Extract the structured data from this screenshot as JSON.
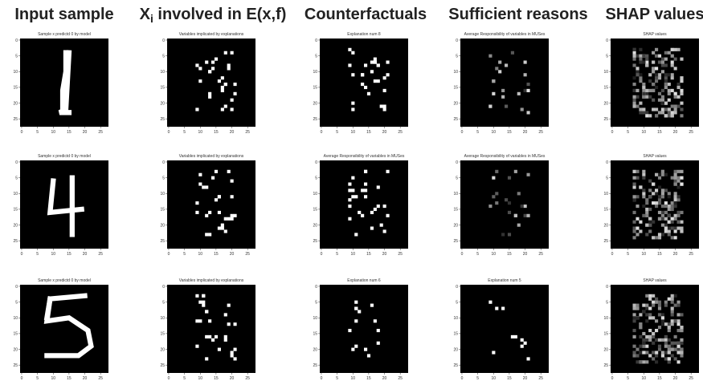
{
  "headers": [
    "Input sample",
    {
      "main": "X",
      "sub": "i",
      "rest": " involved in E(x,f)"
    },
    "Counterfactuals",
    "Sufficient reasons",
    "SHAP values"
  ],
  "rows": [
    {
      "panels": [
        {
          "title": "Sample x predictd 0 by model"
        },
        {
          "title": "Variables implicated by explanations"
        },
        {
          "title": "Explanation num 8"
        },
        {
          "title": "Average Responsibility of variables in MUSes"
        },
        {
          "title": "SHAP values"
        }
      ]
    },
    {
      "panels": [
        {
          "title": "Sample x predictd 0 by model"
        },
        {
          "title": "Variables implicated by explanations"
        },
        {
          "title": "Average Responsibility of variables in MUSes"
        },
        {
          "title": "Average Responsibility of variables in MUSes"
        },
        {
          "title": "SHAP values"
        }
      ]
    },
    {
      "panels": [
        {
          "title": "Sample x predictd 0 by model"
        },
        {
          "title": "Variables implicated by explanations"
        },
        {
          "title": "Explanation num 6"
        },
        {
          "title": "Explanation num 5"
        },
        {
          "title": "SHAP values"
        }
      ]
    }
  ],
  "axis": {
    "lim": [
      -0.5,
      27.5
    ],
    "ticks": [
      0,
      5,
      10,
      15,
      20,
      25
    ]
  }
}
